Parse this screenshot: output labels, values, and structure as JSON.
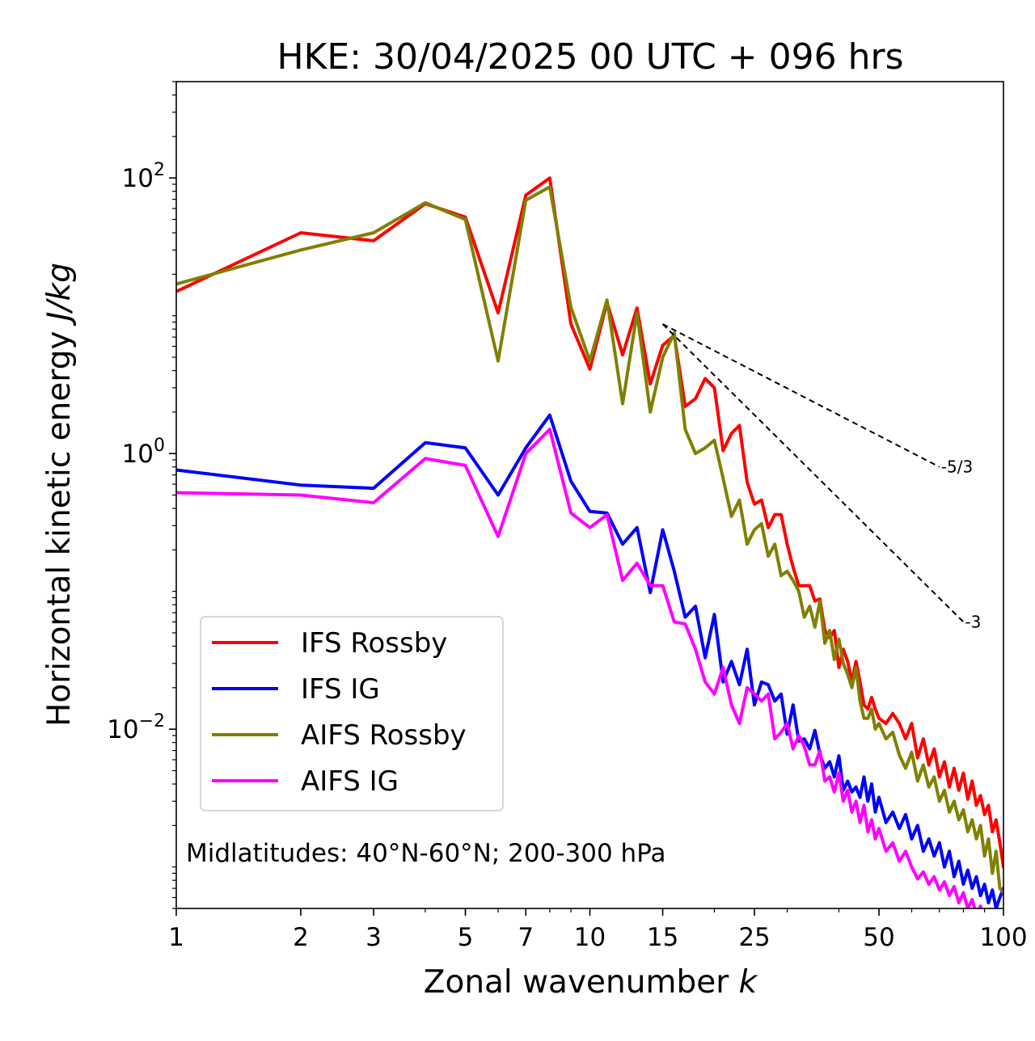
{
  "chart_data": {
    "type": "line",
    "title": "HKE: 30/04/2025 00 UTC + 096 hrs",
    "xlabel": "Zonal wavenumber",
    "xlabel_var": "k",
    "ylabel": "Horizontal kinetic energy",
    "ylabel_unit": "J/kg",
    "xscale": "log",
    "yscale": "log",
    "xlim": [
      1,
      100
    ],
    "ylim": [
      0.0005,
      500
    ],
    "x_ticks": [
      {
        "value": 1,
        "label": "1"
      },
      {
        "value": 2,
        "label": "2"
      },
      {
        "value": 3,
        "label": "3"
      },
      {
        "value": 5,
        "label": "5"
      },
      {
        "value": 7,
        "label": "7"
      },
      {
        "value": 10,
        "label": "10"
      },
      {
        "value": 15,
        "label": "15"
      },
      {
        "value": 25,
        "label": "25"
      },
      {
        "value": 50,
        "label": "50"
      },
      {
        "value": 100,
        "label": "100"
      }
    ],
    "y_ticks": [
      {
        "value": 100,
        "base": "10",
        "exp": "2"
      },
      {
        "value": 1,
        "base": "10",
        "exp": "0"
      },
      {
        "value": 0.01,
        "base": "10",
        "exp": "−2"
      }
    ],
    "annotation": "Midlatitudes: 40°N-60°N; 200-300 hPa",
    "legend_position": "lower-left",
    "series": [
      {
        "name": "IFS Rossby",
        "color": "#ff0000",
        "x": [
          1,
          2,
          3,
          4,
          5,
          6,
          7,
          8,
          9,
          10,
          11,
          12,
          13,
          14,
          15,
          16,
          17,
          18,
          19,
          20,
          21,
          22,
          23,
          24,
          25,
          26,
          27,
          28,
          29,
          30,
          31,
          32,
          33,
          34,
          35,
          36,
          37,
          38,
          39,
          40,
          41,
          42,
          43,
          44,
          45,
          46,
          47,
          48,
          49,
          50,
          52,
          54,
          56,
          58,
          60,
          62,
          64,
          66,
          68,
          70,
          72,
          74,
          76,
          78,
          80,
          82,
          84,
          86,
          88,
          90,
          92,
          94,
          96,
          98,
          100
        ],
        "y": [
          15,
          40,
          35,
          65,
          52,
          10.5,
          75,
          100,
          8.7,
          4.1,
          12.5,
          5.2,
          11.4,
          3.2,
          6.1,
          7.2,
          2.2,
          2.5,
          3.5,
          3.0,
          1.05,
          1.4,
          1.6,
          0.62,
          0.43,
          0.46,
          0.29,
          0.36,
          0.36,
          0.22,
          0.15,
          0.11,
          0.11,
          0.11,
          0.085,
          0.088,
          0.052,
          0.046,
          0.052,
          0.028,
          0.038,
          0.031,
          0.022,
          0.031,
          0.022,
          0.015,
          0.014,
          0.017,
          0.014,
          0.012,
          0.011,
          0.013,
          0.011,
          0.0085,
          0.011,
          0.0062,
          0.0085,
          0.0055,
          0.0072,
          0.0045,
          0.0058,
          0.0038,
          0.0052,
          0.0036,
          0.0048,
          0.0031,
          0.0042,
          0.0028,
          0.0033,
          0.0024,
          0.0028,
          0.0018,
          0.0022,
          0.0015,
          0.001
        ]
      },
      {
        "name": "IFS IG",
        "color": "#0000ff",
        "x": [
          1,
          2,
          3,
          4,
          5,
          6,
          7,
          8,
          9,
          10,
          11,
          12,
          13,
          14,
          15,
          16,
          17,
          18,
          19,
          20,
          21,
          22,
          23,
          24,
          25,
          26,
          27,
          28,
          29,
          30,
          31,
          32,
          33,
          34,
          35,
          36,
          37,
          38,
          39,
          40,
          41,
          42,
          43,
          44,
          45,
          46,
          47,
          48,
          49,
          50,
          52,
          54,
          56,
          58,
          60,
          62,
          64,
          66,
          68,
          70,
          72,
          74,
          76,
          78,
          80,
          82,
          84,
          86,
          88,
          90,
          92,
          94,
          96,
          98,
          100
        ],
        "y": [
          0.76,
          0.59,
          0.56,
          1.2,
          1.1,
          0.5,
          1.1,
          1.9,
          0.63,
          0.38,
          0.37,
          0.22,
          0.29,
          0.098,
          0.28,
          0.14,
          0.065,
          0.078,
          0.033,
          0.068,
          0.022,
          0.031,
          0.021,
          0.038,
          0.015,
          0.022,
          0.021,
          0.016,
          0.018,
          0.0092,
          0.015,
          0.0082,
          0.0085,
          0.0072,
          0.0098,
          0.0066,
          0.0052,
          0.0058,
          0.0045,
          0.0064,
          0.0036,
          0.0042,
          0.0035,
          0.0038,
          0.0032,
          0.0045,
          0.003,
          0.004,
          0.0025,
          0.0032,
          0.0021,
          0.0025,
          0.0019,
          0.0024,
          0.0016,
          0.002,
          0.0013,
          0.0016,
          0.0012,
          0.0015,
          0.001,
          0.0013,
          0.00085,
          0.0011,
          0.00075,
          0.00095,
          0.0007,
          0.00085,
          0.00062,
          0.00075,
          0.00055,
          0.00068,
          0.0005,
          0.0006,
          0.0007
        ]
      },
      {
        "name": "AIFS Rossby",
        "color": "#808000",
        "x": [
          1,
          2,
          3,
          4,
          5,
          6,
          7,
          8,
          9,
          10,
          11,
          12,
          13,
          14,
          15,
          16,
          17,
          18,
          19,
          20,
          21,
          22,
          23,
          24,
          25,
          26,
          27,
          28,
          29,
          30,
          31,
          32,
          33,
          34,
          35,
          36,
          37,
          38,
          39,
          40,
          41,
          42,
          43,
          44,
          45,
          46,
          47,
          48,
          49,
          50,
          52,
          54,
          56,
          58,
          60,
          62,
          64,
          66,
          68,
          70,
          72,
          74,
          76,
          78,
          80,
          82,
          84,
          86,
          88,
          90,
          92,
          94,
          96,
          98,
          100
        ],
        "y": [
          17,
          30,
          40,
          66,
          50,
          4.7,
          69,
          86,
          11.5,
          4.7,
          13,
          2.3,
          10.5,
          2.0,
          5.0,
          7.5,
          1.5,
          1.0,
          1.1,
          1.25,
          0.66,
          0.35,
          0.46,
          0.22,
          0.28,
          0.31,
          0.18,
          0.22,
          0.13,
          0.14,
          0.12,
          0.1,
          0.065,
          0.078,
          0.055,
          0.085,
          0.042,
          0.052,
          0.032,
          0.045,
          0.03,
          0.025,
          0.02,
          0.028,
          0.016,
          0.012,
          0.012,
          0.014,
          0.01,
          0.011,
          0.0085,
          0.0095,
          0.0065,
          0.0052,
          0.0068,
          0.0042,
          0.0055,
          0.0038,
          0.0045,
          0.003,
          0.0036,
          0.0025,
          0.003,
          0.0022,
          0.0026,
          0.0018,
          0.0022,
          0.0016,
          0.002,
          0.0012,
          0.0016,
          0.0009,
          0.0013,
          0.0007,
          0.00065
        ]
      },
      {
        "name": "AIFS IG",
        "color": "#ff00ff",
        "x": [
          1,
          2,
          3,
          4,
          5,
          6,
          7,
          8,
          9,
          10,
          11,
          12,
          13,
          14,
          15,
          16,
          17,
          18,
          19,
          20,
          21,
          22,
          23,
          24,
          25,
          26,
          27,
          28,
          29,
          30,
          31,
          32,
          33,
          34,
          35,
          36,
          37,
          38,
          39,
          40,
          41,
          42,
          43,
          44,
          45,
          46,
          47,
          48,
          49,
          50,
          52,
          54,
          56,
          58,
          60,
          62,
          64,
          66,
          68,
          70,
          72,
          74,
          76,
          78,
          80,
          82,
          84,
          86,
          88,
          90,
          92,
          94,
          96,
          98,
          100
        ],
        "y": [
          0.52,
          0.5,
          0.44,
          0.92,
          0.82,
          0.25,
          1.0,
          1.5,
          0.37,
          0.29,
          0.36,
          0.12,
          0.16,
          0.11,
          0.11,
          0.06,
          0.058,
          0.038,
          0.022,
          0.018,
          0.028,
          0.015,
          0.011,
          0.02,
          0.018,
          0.016,
          0.018,
          0.0085,
          0.0095,
          0.011,
          0.0072,
          0.009,
          0.0075,
          0.0055,
          0.0055,
          0.007,
          0.0042,
          0.0045,
          0.0035,
          0.0048,
          0.003,
          0.0036,
          0.0025,
          0.003,
          0.0021,
          0.0028,
          0.0018,
          0.0022,
          0.0016,
          0.0019,
          0.0013,
          0.0015,
          0.0011,
          0.0013,
          0.001,
          0.00082,
          0.00092,
          0.00075,
          0.00085,
          0.00068,
          0.00078,
          0.00062,
          0.00072,
          0.00055,
          0.00065,
          0.0005,
          0.00058,
          0.00045,
          0.00052,
          0.0004,
          0.00046,
          0.00036,
          0.00042,
          0.00032,
          0.00035
        ]
      }
    ],
    "reference_lines": [
      {
        "label": "-5/3",
        "slope": -1.6667,
        "x": [
          15,
          70
        ],
        "y": [
          8.7,
          0.8
        ]
      },
      {
        "label": "-3",
        "slope": -3,
        "x": [
          15,
          80
        ],
        "y": [
          8.7,
          0.06
        ]
      }
    ]
  }
}
